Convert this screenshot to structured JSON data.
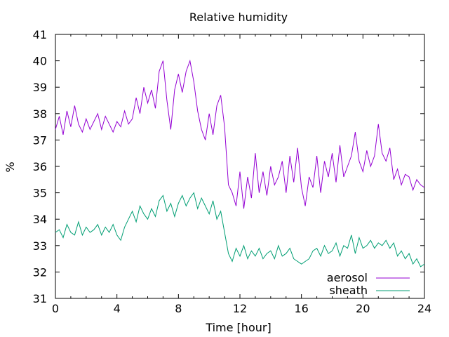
{
  "chart_data": {
    "type": "line",
    "title": "Relative humidity",
    "xlabel": "Time [hour]",
    "ylabel": "%",
    "xlim": [
      0,
      24
    ],
    "ylim": [
      31,
      41
    ],
    "xticks": [
      "0",
      "4",
      "8",
      "12",
      "16",
      "20",
      "24"
    ],
    "yticks": [
      "31",
      "32",
      "33",
      "34",
      "35",
      "36",
      "37",
      "38",
      "39",
      "40",
      "41"
    ],
    "grid": false,
    "legend_position": "bottom-right",
    "series": [
      {
        "name": "aerosol",
        "color": "#9400d3",
        "x": [
          0,
          0.25,
          0.5,
          0.75,
          1,
          1.25,
          1.5,
          1.75,
          2,
          2.25,
          2.5,
          2.75,
          3,
          3.25,
          3.5,
          3.75,
          4,
          4.25,
          4.5,
          4.75,
          5,
          5.25,
          5.5,
          5.75,
          6,
          6.25,
          6.5,
          6.75,
          7,
          7.25,
          7.5,
          7.75,
          8,
          8.25,
          8.5,
          8.75,
          9,
          9.25,
          9.5,
          9.75,
          10,
          10.25,
          10.5,
          10.75,
          11,
          11.25,
          11.5,
          11.75,
          12,
          12.25,
          12.5,
          12.75,
          13,
          13.25,
          13.5,
          13.75,
          14,
          14.25,
          14.5,
          14.75,
          15,
          15.25,
          15.5,
          15.75,
          16,
          16.25,
          16.5,
          16.75,
          17,
          17.25,
          17.5,
          17.75,
          18,
          18.25,
          18.5,
          18.75,
          19,
          19.25,
          19.5,
          19.75,
          20,
          20.25,
          20.5,
          20.75,
          21,
          21.25,
          21.5,
          21.75,
          22,
          22.25,
          22.5,
          22.75,
          23,
          23.25,
          23.5,
          23.75,
          24
        ],
        "values": [
          37.4,
          37.9,
          37.2,
          38.1,
          37.5,
          38.3,
          37.6,
          37.3,
          37.8,
          37.4,
          37.7,
          38.0,
          37.4,
          37.9,
          37.6,
          37.3,
          37.7,
          37.5,
          38.1,
          37.6,
          37.8,
          38.6,
          38.0,
          39.0,
          38.4,
          38.9,
          38.2,
          39.6,
          40.0,
          38.5,
          37.4,
          38.9,
          39.5,
          38.8,
          39.6,
          40.0,
          39.2,
          38.1,
          37.4,
          37.0,
          38.0,
          37.2,
          38.3,
          38.7,
          37.5,
          35.3,
          35.0,
          34.5,
          35.8,
          34.4,
          35.6,
          34.8,
          36.5,
          35.0,
          35.8,
          34.9,
          36.0,
          35.3,
          35.6,
          36.2,
          35.0,
          36.4,
          35.4,
          36.7,
          35.2,
          34.5,
          35.6,
          35.2,
          36.4,
          35.0,
          36.2,
          35.6,
          36.5,
          35.4,
          36.8,
          35.6,
          36.0,
          36.4,
          37.3,
          36.2,
          35.8,
          36.6,
          36.0,
          36.4,
          37.6,
          36.5,
          36.2,
          36.7,
          35.5,
          35.9,
          35.3,
          35.7,
          35.6,
          35.1,
          35.5,
          35.3,
          35.2
        ]
      },
      {
        "name": "sheath",
        "color": "#009e73",
        "x": [
          0,
          0.25,
          0.5,
          0.75,
          1,
          1.25,
          1.5,
          1.75,
          2,
          2.25,
          2.5,
          2.75,
          3,
          3.25,
          3.5,
          3.75,
          4,
          4.25,
          4.5,
          4.75,
          5,
          5.25,
          5.5,
          5.75,
          6,
          6.25,
          6.5,
          6.75,
          7,
          7.25,
          7.5,
          7.75,
          8,
          8.25,
          8.5,
          8.75,
          9,
          9.25,
          9.5,
          9.75,
          10,
          10.25,
          10.5,
          10.75,
          11,
          11.25,
          11.5,
          11.75,
          12,
          12.25,
          12.5,
          12.75,
          13,
          13.25,
          13.5,
          13.75,
          14,
          14.25,
          14.5,
          14.75,
          15,
          15.25,
          15.5,
          15.75,
          16,
          16.25,
          16.5,
          16.75,
          17,
          17.25,
          17.5,
          17.75,
          18,
          18.25,
          18.5,
          18.75,
          19,
          19.25,
          19.5,
          19.75,
          20,
          20.25,
          20.5,
          20.75,
          21,
          21.25,
          21.5,
          21.75,
          22,
          22.25,
          22.5,
          22.75,
          23,
          23.25,
          23.5,
          23.75,
          24
        ],
        "values": [
          33.5,
          33.6,
          33.3,
          33.8,
          33.5,
          33.4,
          33.9,
          33.4,
          33.7,
          33.5,
          33.6,
          33.8,
          33.4,
          33.7,
          33.5,
          33.8,
          33.4,
          33.2,
          33.7,
          34.0,
          34.3,
          33.9,
          34.5,
          34.2,
          34.0,
          34.4,
          34.1,
          34.7,
          34.9,
          34.3,
          34.6,
          34.1,
          34.6,
          34.9,
          34.5,
          34.8,
          35.0,
          34.4,
          34.8,
          34.5,
          34.2,
          34.7,
          34.0,
          34.3,
          33.5,
          32.7,
          32.4,
          32.9,
          32.6,
          33.0,
          32.5,
          32.8,
          32.6,
          32.9,
          32.5,
          32.7,
          32.8,
          32.5,
          33.0,
          32.6,
          32.7,
          32.9,
          32.5,
          32.4,
          32.3,
          32.4,
          32.5,
          32.8,
          32.9,
          32.6,
          33.0,
          32.7,
          32.8,
          33.1,
          32.6,
          33.0,
          32.9,
          33.4,
          32.7,
          33.3,
          32.9,
          33.0,
          33.2,
          32.9,
          33.1,
          33.0,
          33.2,
          32.9,
          33.1,
          32.6,
          32.8,
          32.5,
          32.7,
          32.3,
          32.5,
          32.2,
          32.3
        ]
      }
    ]
  }
}
